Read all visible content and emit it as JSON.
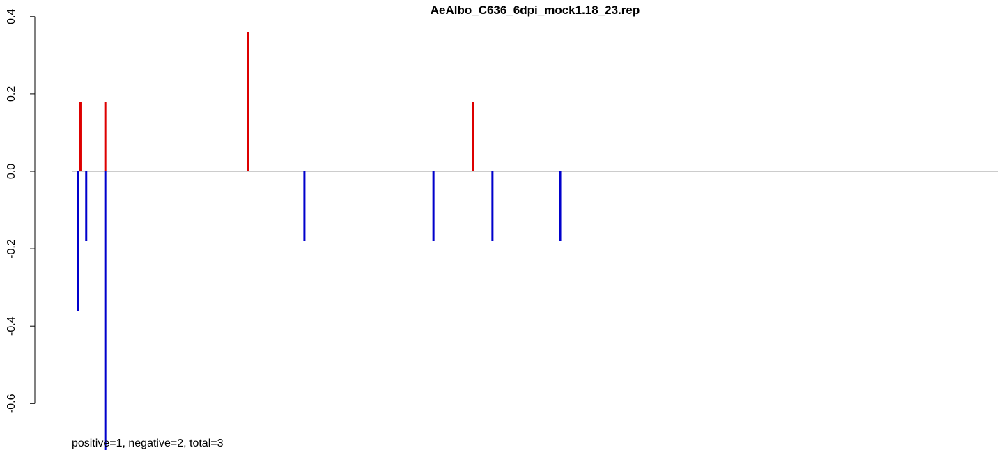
{
  "chart_data": {
    "type": "bar",
    "title": "AeAlbo_C636_6dpi_mock1.18_23.rep",
    "xlabel": "",
    "ylabel": "",
    "ylim": [
      -0.7,
      0.4
    ],
    "xlim": [
      0,
      1600
    ],
    "yticks": [
      "-0.6",
      "-0.4",
      "-0.2",
      "0.0",
      "0.2",
      "0.4"
    ],
    "y_axis_only": true,
    "baseline": 0,
    "annotation": "positive=1, negative=2, total=3",
    "colors": {
      "positive": "#dd0000",
      "negative": "#0000cc",
      "baseline": "#999999"
    },
    "series": [
      {
        "name": "positive",
        "x": [
          15,
          58,
          305,
          693
        ],
        "values": [
          0.18,
          0.18,
          0.36,
          0.18
        ]
      },
      {
        "name": "negative",
        "x": [
          11,
          25,
          58,
          402,
          625,
          727,
          844
        ],
        "values": [
          -0.36,
          -0.18,
          -0.72,
          -0.18,
          -0.18,
          -0.18,
          -0.18
        ]
      }
    ]
  }
}
